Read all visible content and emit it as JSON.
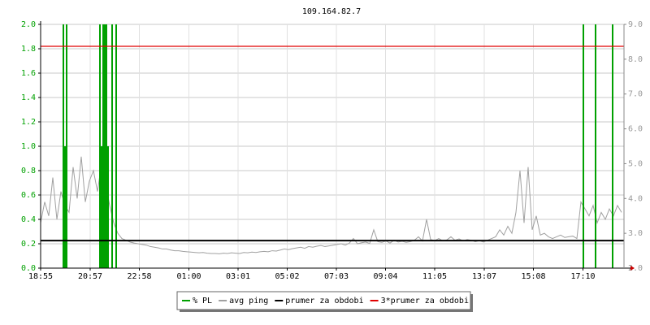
{
  "chart_data": {
    "type": "line",
    "title": "109.164.82.7",
    "xlim": [
      0,
      1436
    ],
    "xticks": [
      {
        "value": 0,
        "label": "18:55"
      },
      {
        "value": 122,
        "label": "20:57"
      },
      {
        "value": 243,
        "label": "22:58"
      },
      {
        "value": 365,
        "label": "01:00"
      },
      {
        "value": 486,
        "label": "03:01"
      },
      {
        "value": 607,
        "label": "05:02"
      },
      {
        "value": 728,
        "label": "07:03"
      },
      {
        "value": 849,
        "label": "09:04"
      },
      {
        "value": 970,
        "label": "11:05"
      },
      {
        "value": 1092,
        "label": "13:07"
      },
      {
        "value": 1213,
        "label": "15:08"
      },
      {
        "value": 1335,
        "label": "17:10"
      }
    ],
    "ylim": [
      0,
      2
    ],
    "yticks": [
      {
        "value": 0,
        "label": "0.0"
      },
      0.2,
      0.4,
      0.6,
      0.8,
      {
        "value": 1,
        "label": "1.0"
      },
      1.2,
      1.4,
      1.6,
      1.8,
      {
        "value": 2,
        "label": "2.0"
      }
    ],
    "y2lim": [
      2,
      9
    ],
    "y2ticks": [
      {
        "value": 2,
        "label": "2.0"
      },
      {
        "value": 3,
        "label": "3.0"
      },
      {
        "value": 4,
        "label": "4.0"
      },
      {
        "value": 5,
        "label": "5.0"
      },
      {
        "value": 6,
        "label": "6.0"
      },
      {
        "value": 7,
        "label": "7.0"
      },
      {
        "value": 8,
        "label": "8.0"
      },
      {
        "value": 9,
        "label": "9.0"
      }
    ],
    "grid": true,
    "series": [
      {
        "name": "% PL",
        "color": "#00a000",
        "type": "impulse",
        "x": [
          56,
          60,
          64,
          146,
          150,
          154,
          158,
          162,
          166,
          176,
          186,
          1336,
          1366,
          1408
        ],
        "values": [
          2,
          1,
          2,
          2,
          1,
          2,
          2,
          2,
          1,
          2,
          2,
          2,
          2,
          2
        ]
      },
      {
        "name": "avg ping",
        "color": "#a0a0a0",
        "type": "line",
        "axis": "y2",
        "x": [
          0,
          10,
          20,
          30,
          40,
          50,
          60,
          70,
          80,
          90,
          100,
          110,
          120,
          130,
          140,
          150,
          160,
          170,
          180,
          190,
          200,
          210,
          220,
          230,
          240,
          250,
          260,
          270,
          280,
          290,
          300,
          310,
          320,
          330,
          340,
          350,
          360,
          370,
          380,
          390,
          400,
          410,
          420,
          430,
          440,
          450,
          460,
          470,
          480,
          490,
          500,
          510,
          520,
          530,
          540,
          550,
          560,
          570,
          580,
          590,
          600,
          610,
          620,
          630,
          640,
          650,
          660,
          670,
          680,
          690,
          700,
          710,
          720,
          730,
          740,
          750,
          760,
          770,
          780,
          790,
          800,
          810,
          820,
          830,
          840,
          850,
          860,
          870,
          880,
          890,
          900,
          910,
          920,
          930,
          940,
          950,
          960,
          970,
          980,
          990,
          1000,
          1010,
          1020,
          1030,
          1040,
          1050,
          1060,
          1070,
          1080,
          1090,
          1100,
          1110,
          1120,
          1130,
          1140,
          1150,
          1160,
          1170,
          1180,
          1190,
          1200,
          1210,
          1220,
          1230,
          1240,
          1250,
          1260,
          1270,
          1280,
          1290,
          1300,
          1310,
          1320,
          1330,
          1340,
          1350,
          1360,
          1370,
          1380,
          1390,
          1400,
          1410,
          1420,
          1430
        ],
        "values": [
          3.3,
          3.9,
          3.5,
          4.6,
          3.4,
          4.2,
          3.8,
          3.6,
          4.9,
          4.0,
          5.2,
          3.9,
          4.5,
          4.8,
          4.2,
          5.0,
          4.4,
          3.8,
          3.3,
          3.0,
          2.85,
          2.8,
          2.75,
          2.72,
          2.7,
          2.68,
          2.66,
          2.62,
          2.6,
          2.58,
          2.55,
          2.55,
          2.52,
          2.5,
          2.5,
          2.48,
          2.47,
          2.46,
          2.45,
          2.44,
          2.45,
          2.43,
          2.42,
          2.42,
          2.41,
          2.43,
          2.42,
          2.44,
          2.43,
          2.42,
          2.45,
          2.44,
          2.46,
          2.45,
          2.47,
          2.48,
          2.47,
          2.5,
          2.49,
          2.52,
          2.55,
          2.53,
          2.56,
          2.58,
          2.6,
          2.57,
          2.62,
          2.6,
          2.63,
          2.65,
          2.62,
          2.64,
          2.66,
          2.68,
          2.7,
          2.66,
          2.72,
          2.85,
          2.7,
          2.73,
          2.75,
          2.71,
          3.1,
          2.76,
          2.74,
          2.78,
          2.72,
          2.8,
          2.75,
          2.77,
          2.74,
          2.76,
          2.8,
          2.9,
          2.78,
          3.4,
          2.82,
          2.79,
          2.85,
          2.78,
          2.81,
          2.9,
          2.8,
          2.84,
          2.78,
          2.82,
          2.8,
          2.76,
          2.79,
          2.75,
          2.8,
          2.85,
          2.9,
          3.1,
          2.95,
          3.2,
          3.0,
          3.6,
          4.8,
          3.3,
          4.9,
          3.1,
          3.5,
          2.95,
          3.0,
          2.9,
          2.85,
          2.9,
          2.95,
          2.88,
          2.9,
          2.92,
          2.85,
          3.9,
          3.7,
          3.5,
          3.8,
          3.3,
          3.6,
          3.4,
          3.7,
          3.5,
          3.8,
          3.6
        ]
      },
      {
        "name": "prumer za obdobi",
        "color": "#000000",
        "type": "hline",
        "axis": "y2",
        "values": [
          2.79
        ]
      },
      {
        "name": "3*prumer za obdobi",
        "color": "#e00000",
        "type": "hline",
        "axis": "y2",
        "values": [
          8.37
        ]
      }
    ]
  }
}
